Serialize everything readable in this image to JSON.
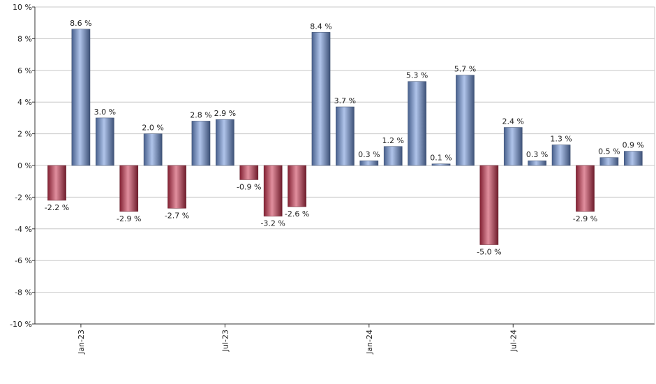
{
  "chart_data": {
    "type": "bar",
    "categories": [
      null,
      "Jan-23",
      null,
      null,
      null,
      null,
      null,
      "Jul-23",
      null,
      null,
      null,
      null,
      null,
      "Jan-24",
      null,
      null,
      null,
      null,
      null,
      "Jul-24",
      null,
      null,
      null,
      null,
      null
    ],
    "values": [
      -2.2,
      8.6,
      3.0,
      -2.9,
      2.0,
      -2.7,
      2.8,
      2.9,
      -0.9,
      -3.2,
      -2.6,
      8.4,
      3.7,
      0.3,
      1.2,
      5.3,
      0.1,
      5.7,
      -5.0,
      2.4,
      0.3,
      1.3,
      -2.9,
      0.5,
      0.9
    ],
    "value_labels": [
      "-2.2 %",
      "8.6 %",
      "3.0 %",
      "-2.9 %",
      "2.0 %",
      "-2.7 %",
      "2.8 %",
      "2.9 %",
      "-0.9 %",
      "-3.2 %",
      "-2.6 %",
      "8.4 %",
      "3.7 %",
      "0.3 %",
      "1.2 %",
      "5.3 %",
      "0.1 %",
      "5.7 %",
      "-5.0 %",
      "2.4 %",
      "0.3 %",
      "1.3 %",
      "-2.9 %",
      "0.5 %",
      "0.9 %"
    ],
    "positive_color": "#6f93d8",
    "negative_color": "#c8334f",
    "ylim": [
      -10,
      10
    ],
    "yticks": [
      {
        "value": -10,
        "label": "-10 %"
      },
      {
        "value": -8,
        "label": "-8 %"
      },
      {
        "value": -6,
        "label": "-6 %"
      },
      {
        "value": -4,
        "label": "-4 %"
      },
      {
        "value": -2,
        "label": "-2 %"
      },
      {
        "value": 0,
        "label": "0 %"
      },
      {
        "value": 2,
        "label": "2 %"
      },
      {
        "value": 4,
        "label": "4 %"
      },
      {
        "value": 6,
        "label": "6 %"
      },
      {
        "value": 8,
        "label": "8 %"
      },
      {
        "value": 10,
        "label": "10 %"
      }
    ],
    "grid": true
  }
}
